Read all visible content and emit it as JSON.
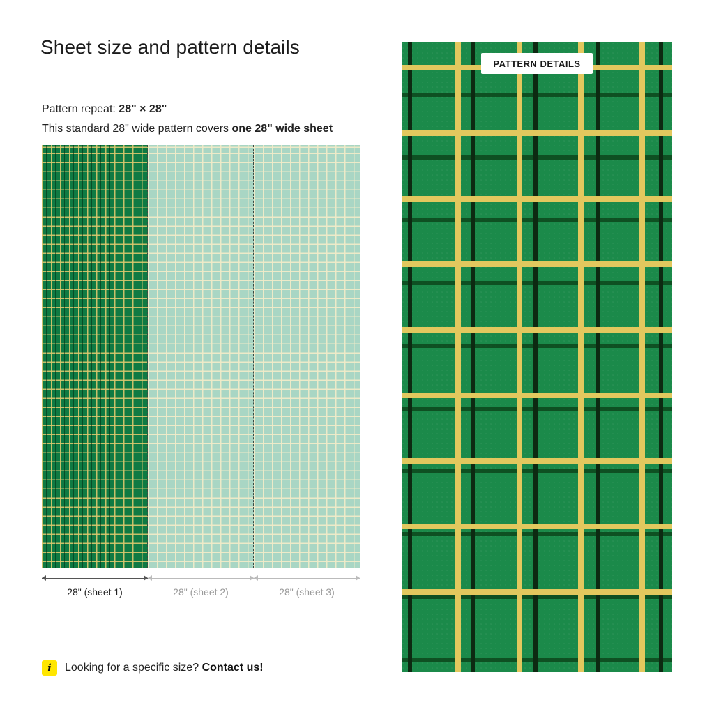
{
  "title": "Sheet size and pattern details",
  "repeat": {
    "label": "Pattern repeat:",
    "value": "28\" × 28\""
  },
  "coverage": {
    "prefix": "This standard 28\" wide pattern covers",
    "emphasis": "one 28\" wide sheet"
  },
  "sheets": [
    {
      "label": "28\" (sheet 1)",
      "active": true
    },
    {
      "label": "28\" (sheet 2)",
      "active": false
    },
    {
      "label": "28\" (sheet 3)",
      "active": false
    }
  ],
  "contact": {
    "icon": "info-icon",
    "icon_glyph": "i",
    "text": "Looking for a specific size?",
    "link": "Contact us!"
  },
  "pattern_panel": {
    "badge": "PATTERN DETAILS"
  },
  "colors": {
    "pattern_green": "#1b8a4a",
    "grid_yellow": "#e2c85e",
    "preview_mint": "#a9d6c4",
    "icon_yellow": "#ffe600"
  }
}
